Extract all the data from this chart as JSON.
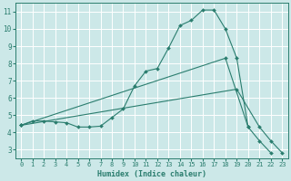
{
  "bg_color": "#cce8e8",
  "grid_color": "#ffffff",
  "line_color": "#2a7d6e",
  "xlabel": "Humidex (Indice chaleur)",
  "xlim": [
    -0.5,
    23.5
  ],
  "ylim": [
    2.5,
    11.5
  ],
  "xticks": [
    0,
    1,
    2,
    3,
    4,
    5,
    6,
    7,
    8,
    9,
    10,
    11,
    12,
    13,
    14,
    15,
    16,
    17,
    18,
    19,
    20,
    21,
    22,
    23
  ],
  "yticks": [
    3,
    4,
    5,
    6,
    7,
    8,
    9,
    10,
    11
  ],
  "curve1_x": [
    0,
    1,
    2,
    3,
    4,
    5,
    6,
    7,
    8,
    9,
    10,
    11,
    12,
    13,
    14,
    15,
    16,
    17,
    18,
    19,
    20,
    21,
    22
  ],
  "curve1_y": [
    4.4,
    4.65,
    4.65,
    4.6,
    4.55,
    4.3,
    4.3,
    4.35,
    4.85,
    5.35,
    6.7,
    7.55,
    7.7,
    8.9,
    10.2,
    10.5,
    11.1,
    11.1,
    10.0,
    8.3,
    4.3,
    3.5,
    2.8
  ],
  "curve2_x": [
    0,
    18,
    20
  ],
  "curve2_y": [
    4.4,
    8.3,
    4.3
  ],
  "curve3_x": [
    0,
    19,
    21,
    22,
    23
  ],
  "curve3_y": [
    4.4,
    6.5,
    4.3,
    3.5,
    2.8
  ],
  "tick_fontsize": 5.0,
  "xlabel_fontsize": 6.0
}
